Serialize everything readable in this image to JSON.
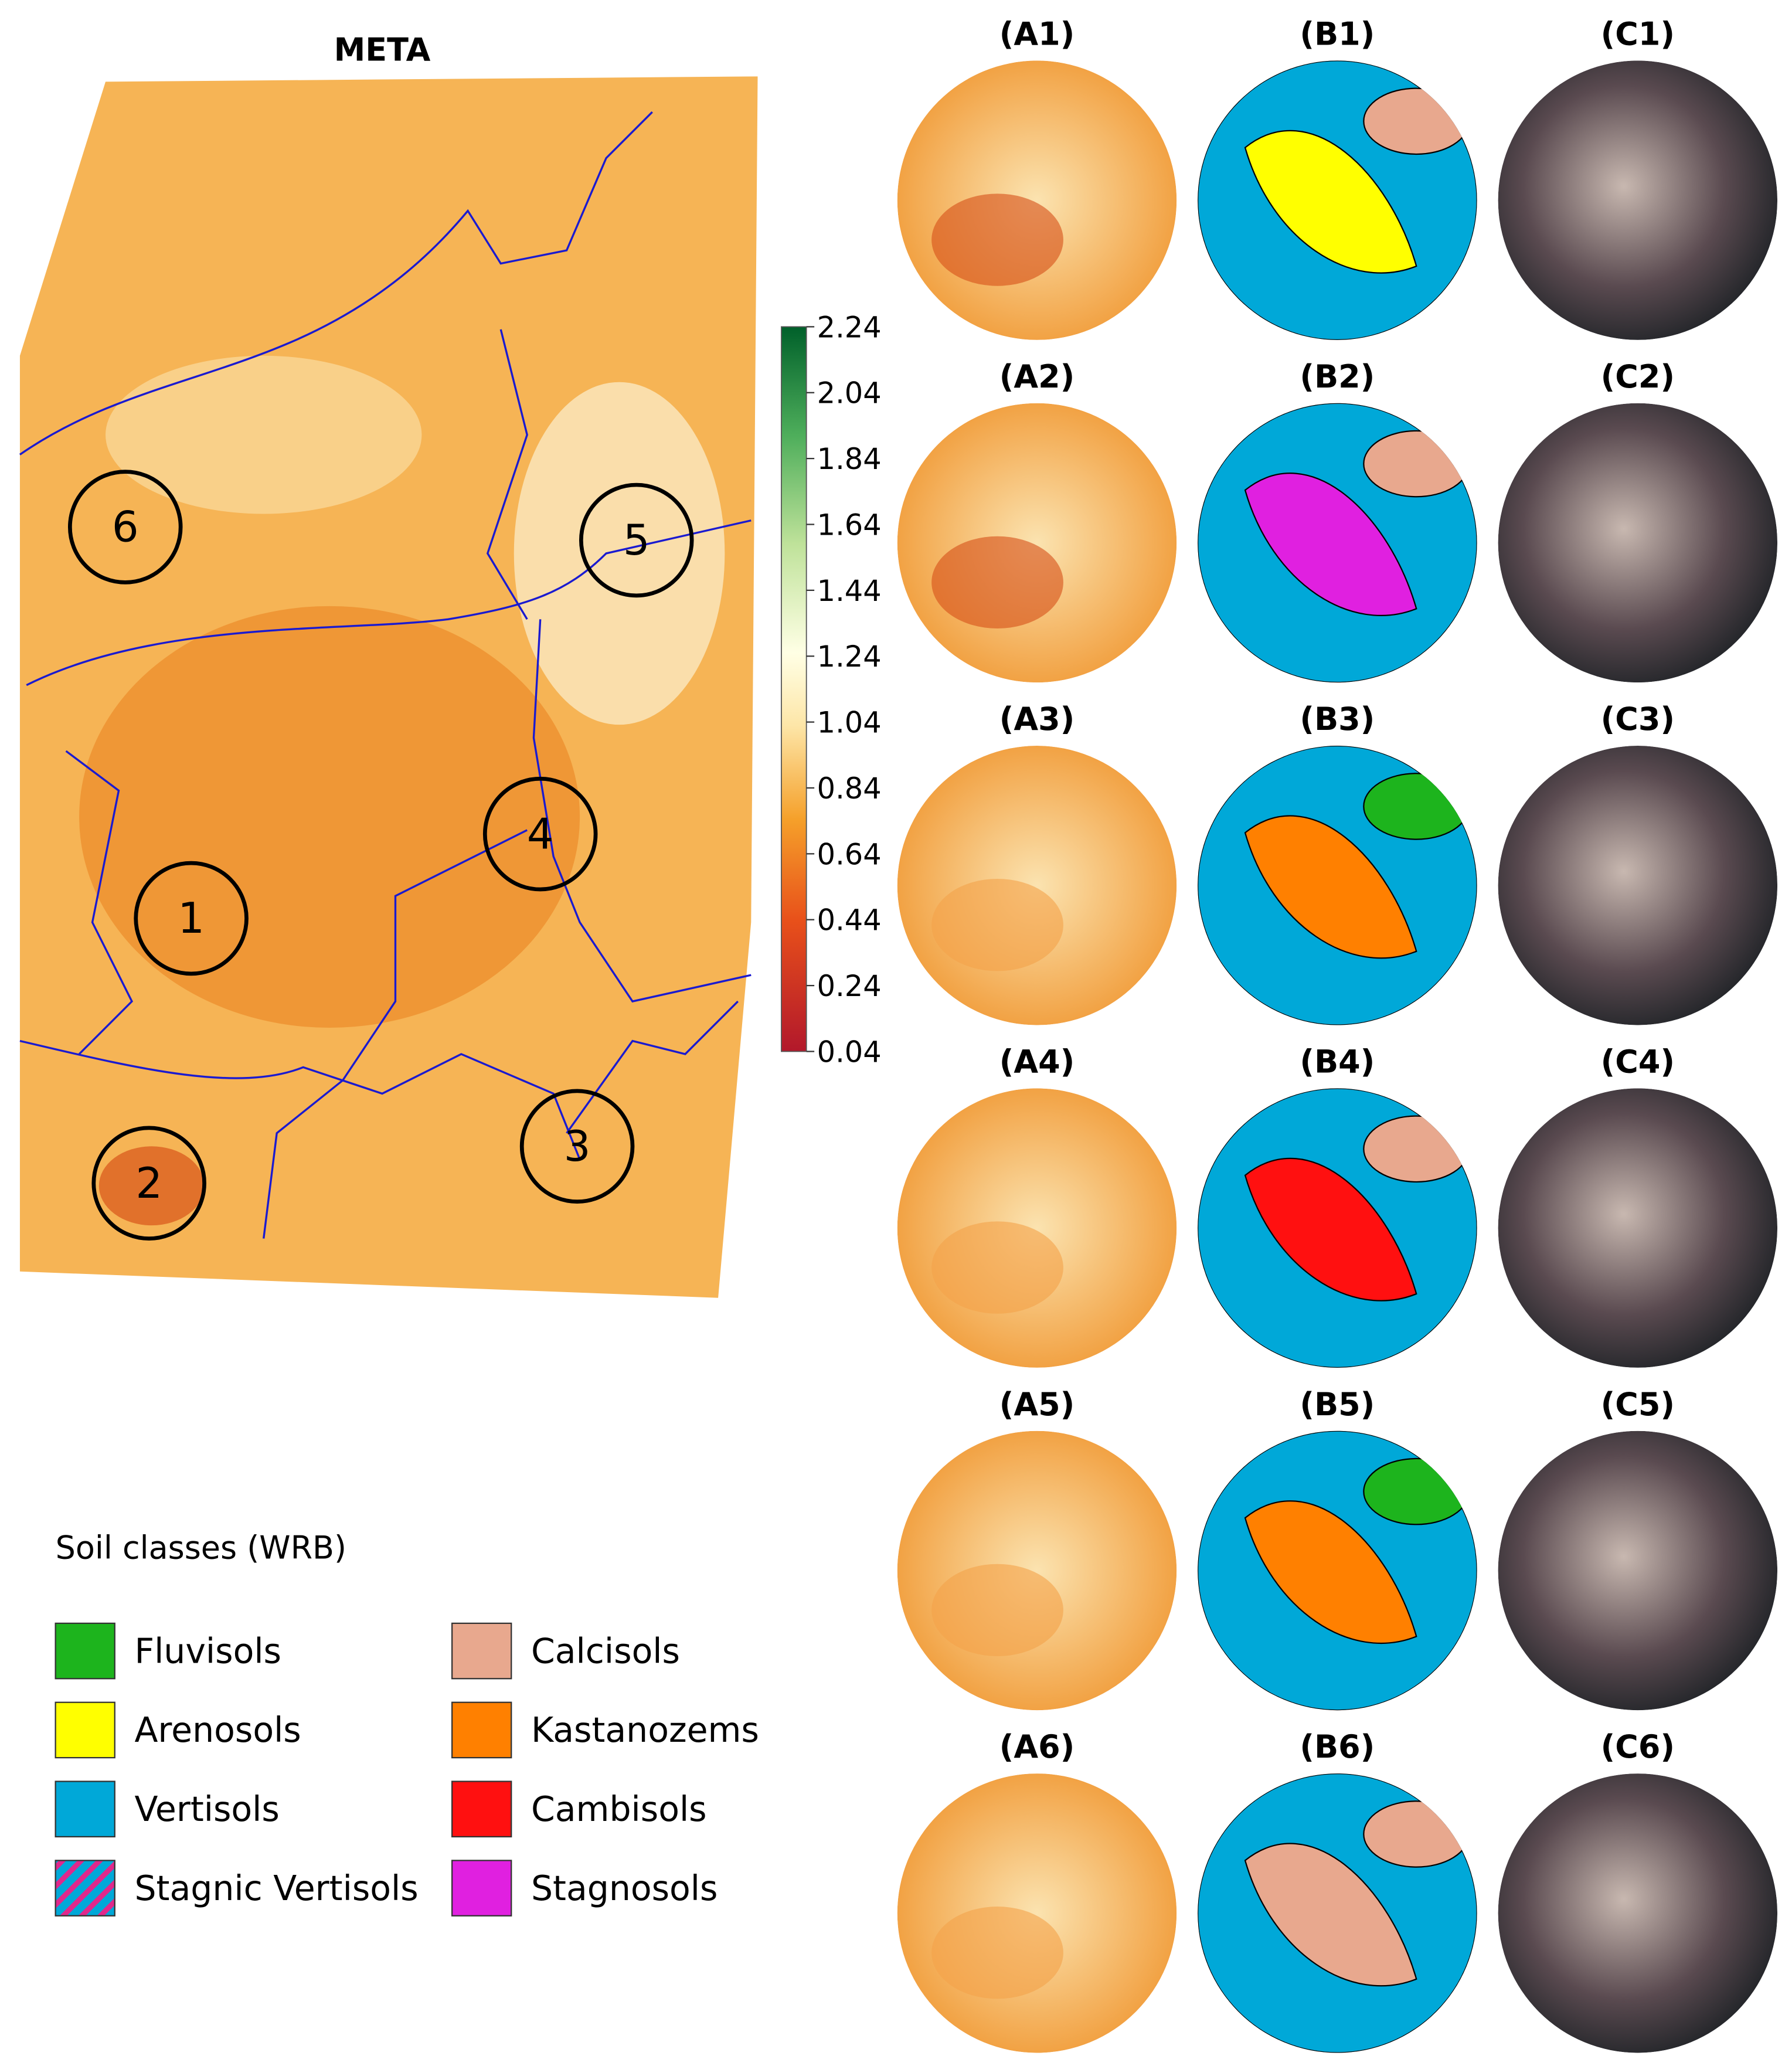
{
  "title": "META",
  "colorbar": {
    "range": [
      0.04,
      2.24
    ],
    "ticks": [
      2.24,
      2.04,
      1.84,
      1.64,
      1.44,
      1.24,
      1.04,
      0.84,
      0.64,
      0.44,
      0.24,
      0.04
    ]
  },
  "sites": [
    "1",
    "2",
    "3",
    "4",
    "5",
    "6"
  ],
  "panels": {
    "columns": [
      [
        "(A1)",
        "(A2)",
        "(A3)",
        "(A4)",
        "(A5)",
        "(A6)"
      ],
      [
        "(B1)",
        "(B2)",
        "(B3)",
        "(B4)",
        "(B5)",
        "(B6)"
      ],
      [
        "(C1)",
        "(C2)",
        "(C3)",
        "(C4)",
        "(C5)",
        "(C6)"
      ]
    ]
  },
  "legend": {
    "title": "Soil classes (WRB)",
    "items": [
      {
        "name": "Fluvisols",
        "color": "#1db41d"
      },
      {
        "name": "Arenosols",
        "color": "#ffff00"
      },
      {
        "name": "Vertisols",
        "color": "#00a8d8"
      },
      {
        "name": "Stagnic Vertisols",
        "color": "#00a8d8",
        "hatch": "#e0288c"
      },
      {
        "name": "Calcisols",
        "color": "#e8a88e"
      },
      {
        "name": "Kastanozems",
        "color": "#ff8000"
      },
      {
        "name": "Cambisols",
        "color": "#ff1010"
      },
      {
        "name": "Stagnosols",
        "color": "#e020e0"
      }
    ]
  }
}
